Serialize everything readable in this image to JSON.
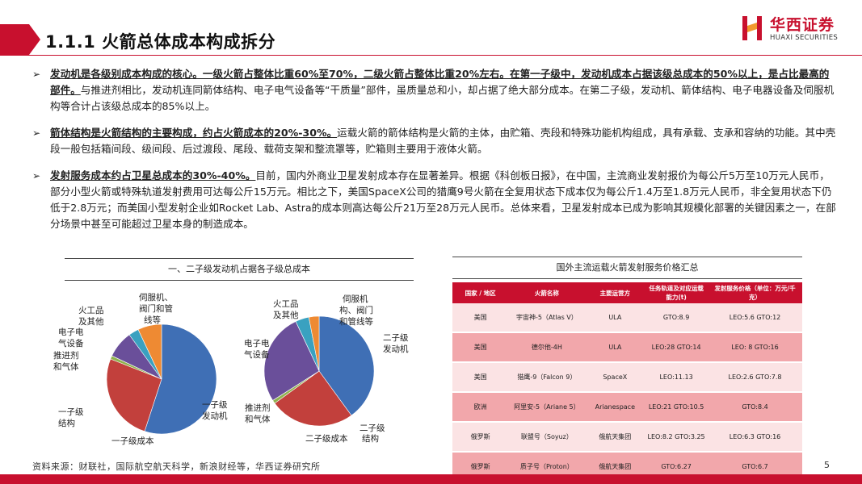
{
  "header": {
    "title": "1.1.1 火箭总体成本构成拆分"
  },
  "logo": {
    "name_cn": "华西证券",
    "name_en": "HUAXI SECURITIES",
    "accent": "#c8102e"
  },
  "bullets": [
    {
      "key": "发动机是各级别成本构成的核心。一级火箭占整体比重60%至70%，二级火箭占整体比重20%左右。在第一子级中，发动机成本占据该级总成本的50%以上，是占比最高的部件。",
      "body": "与推进剂相比，发动机连同箭体结构、电子电气设备等“干质量”部件，虽质量总和小，却占据了绝大部分成本。在第二子级，发动机、箭体结构、电子电器设备及伺服机构等合计占该级总成本的85%以上。"
    },
    {
      "key": "箭体结构是火箭结构的主要构成，约占火箭成本的20%-30%。",
      "body": "运载火箭的箭体结构是火箭的主体，由贮箱、壳段和特殊功能机构组成，具有承载、支承和容纳的功能。其中壳段一般包括箱间段、级间段、后过渡段、尾段、载荷支架和整流罩等，贮箱则主要用于液体火箭。"
    },
    {
      "key": "发射服务成本约占卫星总成本的30%-40%。",
      "body": "目前，国内外商业卫星发射成本存在显著差异。根据《科创板日报》，在中国，主流商业发射报价为每公斤5万至10万元人民币，部分小型火箭或特殊轨道发射费用可达每公斤15万元。相比之下，美国SpaceX公司的猎鹰9号火箭在全复用状态下成本仅为每公斤1.4万至1.8万元人民币，非全复用状态下仍低于2.8万元；而美国小型发射企业如Rocket Lab、Astra的成本则高达每公斤21万至28万元人民币。总体来看，卫星发射成本已成为影响其规模化部署的关键因素之一，在部分场景中甚至可能超过卫星本身的制造成本。"
    }
  ],
  "chart_data": [
    {
      "type": "pie",
      "title": "一、二子级发动机占据各子级总成本",
      "name": "一子级成本",
      "slices": [
        {
          "label": "一子级发动机",
          "value": 55,
          "color": "#3f6fb5"
        },
        {
          "label": "一子级结构",
          "value": 26,
          "color": "#c2403c"
        },
        {
          "label": "推进剂和气体",
          "value": 1,
          "color": "#8fb24f"
        },
        {
          "label": "电子电气设备",
          "value": 8,
          "color": "#6a4f9a"
        },
        {
          "label": "火工品及其他",
          "value": 3,
          "color": "#3aa1c0"
        },
        {
          "label": "伺服机、阀门和管线等",
          "value": 7,
          "color": "#ee8a33"
        }
      ]
    },
    {
      "type": "pie",
      "name": "二子级成本",
      "slices": [
        {
          "label": "二子级发动机",
          "value": 40,
          "color": "#3f6fb5"
        },
        {
          "label": "二子级结构",
          "value": 25,
          "color": "#c2403c"
        },
        {
          "label": "推进剂和气体",
          "value": 1,
          "color": "#8fb24f"
        },
        {
          "label": "电子电气设备",
          "value": 27,
          "color": "#6a4f9a"
        },
        {
          "label": "火工品及其他",
          "value": 4,
          "color": "#3aa1c0"
        },
        {
          "label": "伺服机构、阀门和管线等",
          "value": 3,
          "color": "#ee8a33"
        }
      ]
    }
  ],
  "pie_labels_1": {
    "servo": [
      "伺服机、",
      "阀门和管",
      "线等"
    ],
    "pyro": [
      "火工品",
      "及其他"
    ],
    "elec": [
      "电子电",
      "气设备"
    ],
    "prop": [
      "推进剂",
      "和气体"
    ],
    "struct": [
      "一子级",
      "结构"
    ],
    "engine": [
      "一子级",
      "发动机"
    ],
    "name": "一子级成本"
  },
  "pie_labels_2": {
    "pyro": [
      "火工品",
      "及其他"
    ],
    "servo": [
      "伺服机",
      "构、阀门",
      "和管线等"
    ],
    "elec": [
      "电子电",
      "气设备"
    ],
    "engine": [
      "二子级",
      "发动机"
    ],
    "prop": [
      "推进剂",
      "和气体"
    ],
    "struct": [
      "二子级",
      "结构"
    ],
    "name": "二子级成本"
  },
  "table": {
    "title": "国外主流运载火箭发射服务价格汇总",
    "headers": [
      "国家 / 地区",
      "火箭名称",
      "主要运营方",
      "任务轨道及对应运载能力(t)",
      "发射服务价格（单位：万元/千克）"
    ],
    "rows": [
      [
        "美国",
        "宇宙神-5（Atlas V）",
        "ULA",
        "GTO:8.9",
        "LEO:5.6 GTO:12"
      ],
      [
        "美国",
        "德尔他-4H",
        "ULA",
        "LEO:28 GTO:14",
        "LEO: 8  GTO:16"
      ],
      [
        "美国",
        "猎鹰-9（Falcon 9）",
        "SpaceX",
        "LEO:11.13",
        "LEO:2.6 GTO:7.8"
      ],
      [
        "欧洲",
        "阿里安-5（Ariane 5）",
        "Arianespace",
        "LEO:21 GTO:10.5",
        "GTO:8.4"
      ],
      [
        "俄罗斯",
        "联盟号（Soyuz）",
        "俄航天集团",
        "LEO:8.2  GTO:3.25",
        "LEO:6.3 GTO:16"
      ],
      [
        "俄罗斯",
        "质子号（Proton）",
        "俄航天集团",
        "GTO:6.27",
        "GTO:6.7"
      ]
    ]
  },
  "footer": {
    "source": "资料来源：财联社，国际航空航天科学，新浪财经等，华西证券研究所",
    "page": "5"
  }
}
